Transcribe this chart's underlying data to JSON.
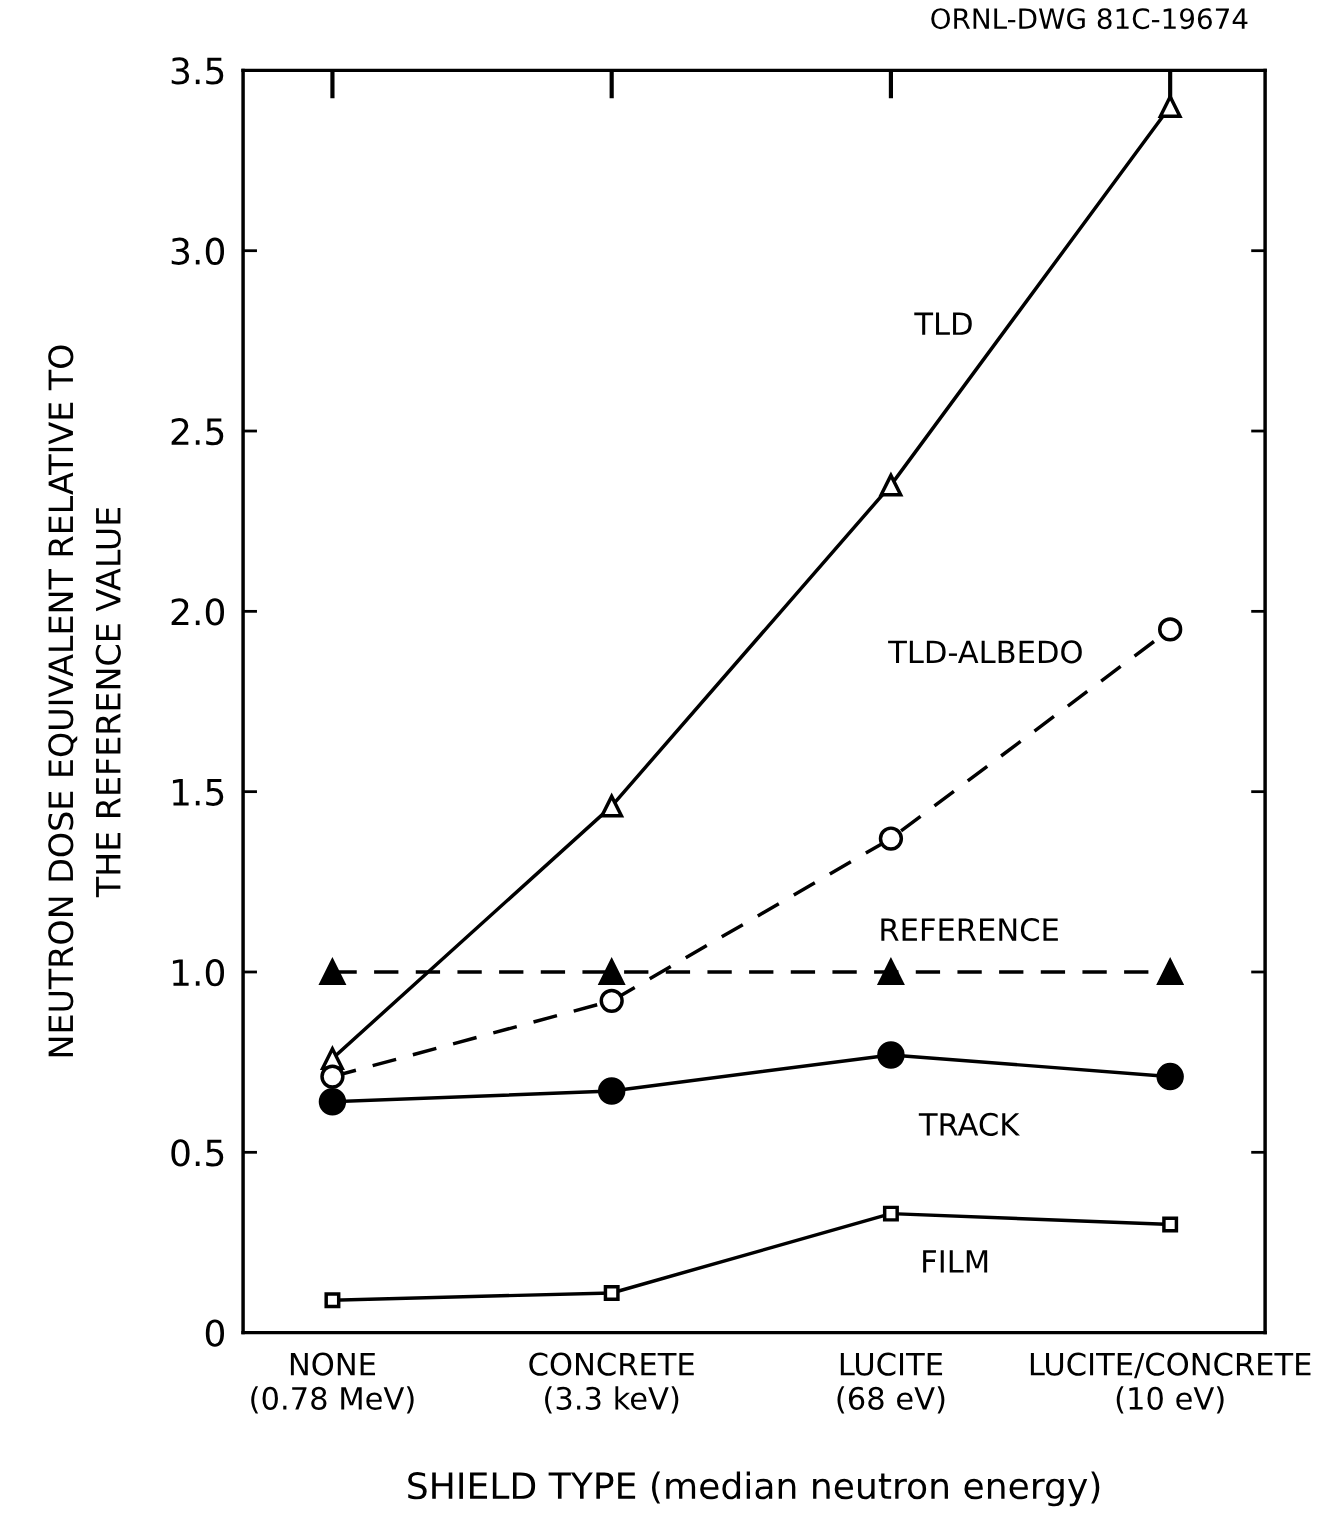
{
  "chart_data": {
    "type": "line",
    "xlabel": "SHIELD TYPE (median neutron energy)",
    "ylabel": "NEUTRON DOSE EQUIVALENT RELATIVE TO\nTHE REFERENCE VALUE",
    "annotations": [
      "ORNL-DWG 81C-19674"
    ],
    "categories": [
      "NONE\n(0.78 MeV)",
      "CONCRETE\n(3.3 keV)",
      "LUCITE\n(68 eV)",
      "LUCITE/CONCRETE\n(10 eV)"
    ],
    "ylim": [
      0,
      3.5
    ],
    "yticks": [
      0,
      0.5,
      {
        "value": 1,
        "label": "1.0"
      },
      1.5,
      {
        "value": 2,
        "label": "2.0"
      },
      2.5,
      {
        "value": 3,
        "label": "3.0"
      },
      3.5
    ],
    "tick_labels": "y",
    "grid": false,
    "legend": false,
    "series": [
      {
        "name": "TLD",
        "color": "#000000",
        "marker": "triangle",
        "line_style": "solid",
        "values": [
          0.76,
          1.46,
          2.35,
          3.4
        ]
      },
      {
        "name": "TLD-ALBEDO",
        "color": "#000000",
        "marker": "circle",
        "line_style": "dashed",
        "values": [
          0.71,
          0.92,
          1.37,
          1.95
        ]
      },
      {
        "name": "REFERENCE",
        "color": "#000000",
        "marker": "triangle",
        "line_style": "dashed",
        "values": [
          1.0,
          1.0,
          1.0,
          1.0
        ]
      },
      {
        "name": "TRACK",
        "color": "#000000",
        "marker": "circle",
        "line_style": "solid",
        "values": [
          0.64,
          0.67,
          0.77,
          0.71
        ]
      },
      {
        "name": "FILM",
        "color": "#000000",
        "marker": "square",
        "line_style": "solid",
        "values": [
          0.09,
          0.11,
          0.33,
          0.3
        ]
      }
    ]
  }
}
